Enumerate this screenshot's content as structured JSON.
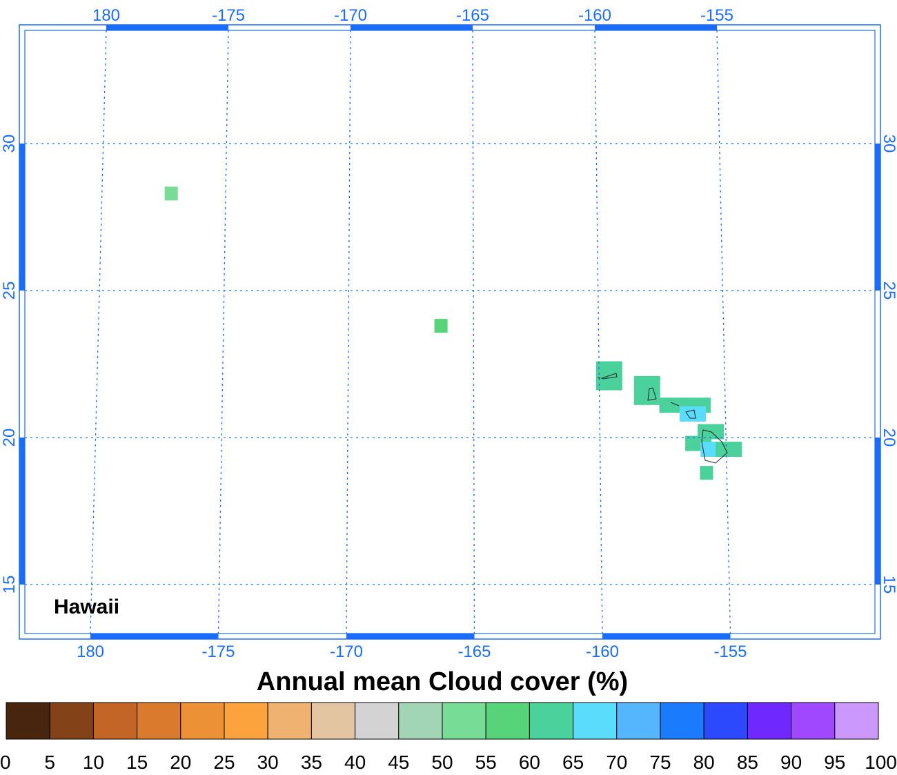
{
  "map": {
    "region_label": "Hawaii",
    "lon_ticks_top": [
      "180",
      "-175",
      "-170",
      "-165",
      "-160",
      "-155"
    ],
    "lon_ticks_bottom": [
      "180",
      "-175",
      "-170",
      "-165",
      "-160",
      "-155"
    ],
    "lat_ticks": [
      "30",
      "25",
      "20",
      "15"
    ],
    "grid_color": "#1a6cff",
    "cells": [
      {
        "lon": -177.2,
        "lat": 28.3,
        "value": 52
      },
      {
        "lon": -166.3,
        "lat": 23.8,
        "value": 57
      },
      {
        "lon": -159.6,
        "lat": 22.1,
        "value": 62
      },
      {
        "lon": -158.1,
        "lat": 21.6,
        "value": 62
      },
      {
        "lon": -157.1,
        "lat": 21.1,
        "value": 62
      },
      {
        "lon": -156.1,
        "lat": 21.1,
        "value": 62
      },
      {
        "lon": -156.3,
        "lat": 20.8,
        "value": 67
      },
      {
        "lon": -155.6,
        "lat": 20.2,
        "value": 62
      },
      {
        "lon": -156.1,
        "lat": 19.8,
        "value": 62
      },
      {
        "lon": -155.5,
        "lat": 19.6,
        "value": 67
      },
      {
        "lon": -154.9,
        "lat": 19.6,
        "value": 62
      },
      {
        "lon": -155.8,
        "lat": 18.8,
        "value": 62
      }
    ]
  },
  "colorbar": {
    "title": "Annual mean Cloud cover (%)",
    "labels": [
      "0",
      "5",
      "10",
      "15",
      "20",
      "25",
      "30",
      "35",
      "40",
      "45",
      "50",
      "55",
      "60",
      "65",
      "70",
      "75",
      "80",
      "85",
      "90",
      "95",
      "100"
    ],
    "colors": [
      "#47250f",
      "#834218",
      "#c36526",
      "#d97a2d",
      "#ec9136",
      "#fda33d",
      "#efb271",
      "#e3c5a2",
      "#d3d3d3",
      "#a2d5b5",
      "#77dd96",
      "#57d47a",
      "#4bd19b",
      "#5adcfc",
      "#56b6fd",
      "#1a7cfd",
      "#2c49fe",
      "#6f29fe",
      "#9f48fe",
      "#cb98fe"
    ]
  }
}
